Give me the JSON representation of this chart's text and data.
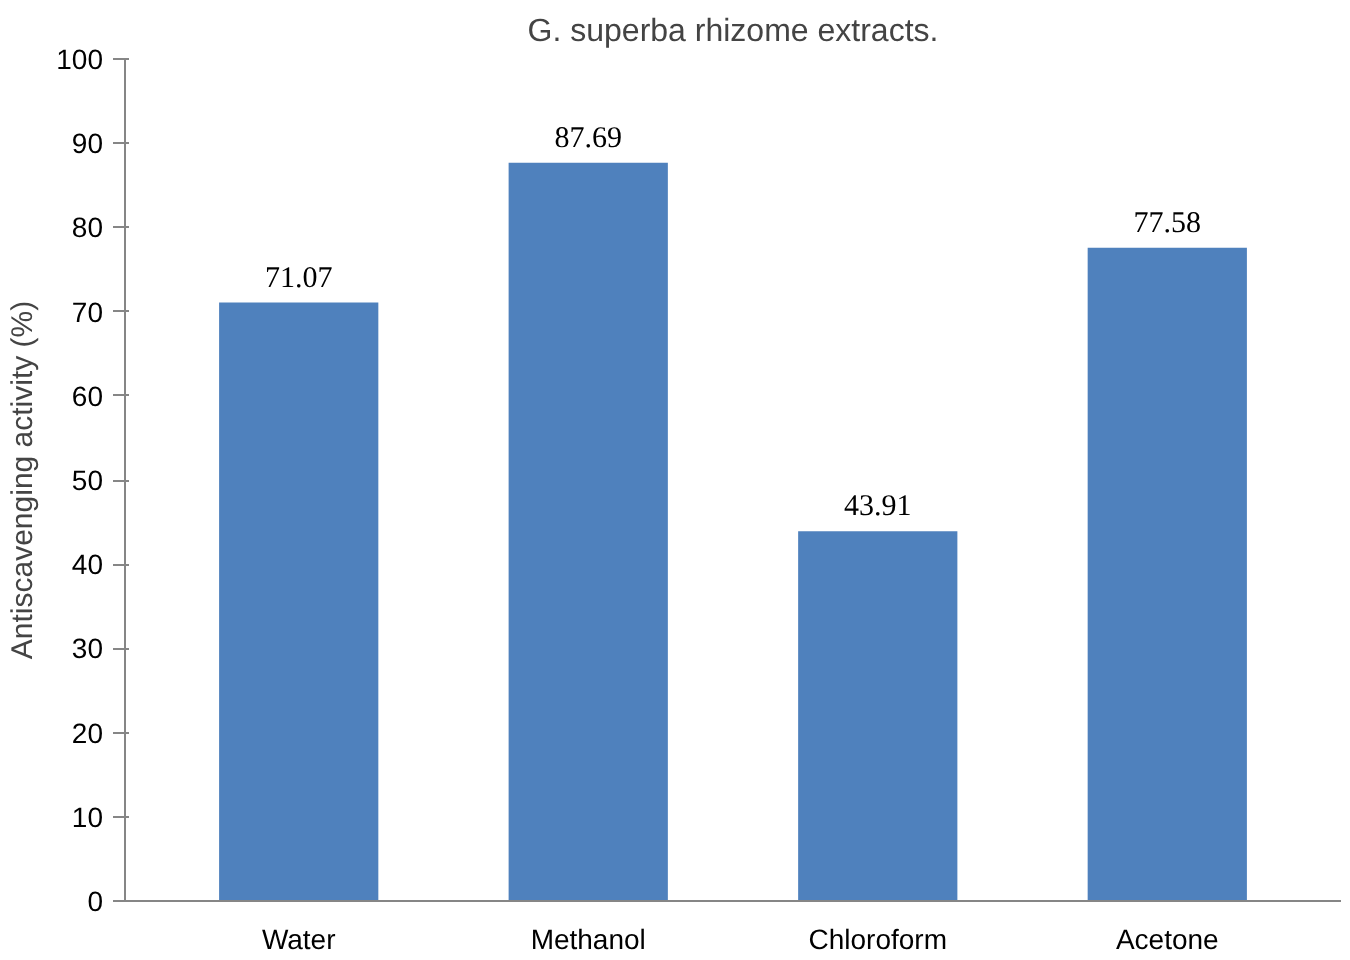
{
  "chart_data": {
    "type": "bar",
    "title": "G. superba rhizome extracts.",
    "ylabel": "Antiscavenging activity (%)",
    "categories": [
      "Water",
      "Methanol",
      "Chloroform",
      "Acetone"
    ],
    "values": [
      71.07,
      87.69,
      43.91,
      77.58
    ],
    "color": "#4f81bd",
    "ylim": [
      0,
      100
    ],
    "yticks": [
      0,
      10,
      20,
      30,
      40,
      50,
      60,
      70,
      80,
      90,
      100
    ],
    "grid": false,
    "data_labels": true
  }
}
